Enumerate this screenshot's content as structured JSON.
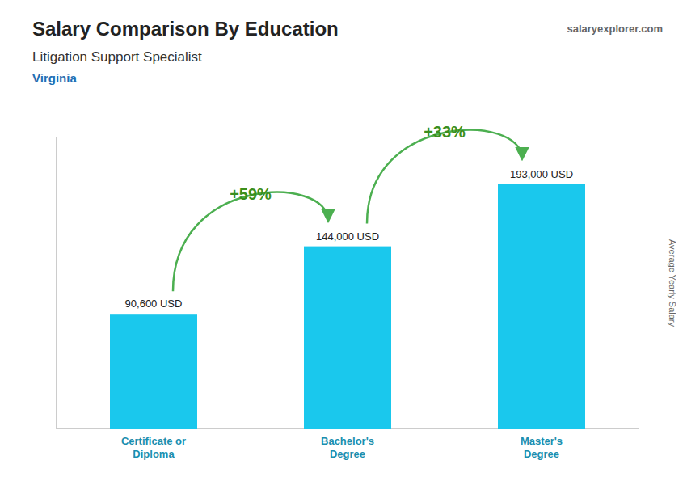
{
  "chart_data": {
    "type": "bar",
    "title": "Salary Comparison By Education",
    "subtitle": [
      "Litigation Support Specialist",
      "Virginia"
    ],
    "source": "salaryexplorer.com",
    "y_label": "Average Yearly Salary",
    "categories": [
      "Certificate or\nDiploma",
      "Bachelor's\nDegree",
      "Master's\nDegree"
    ],
    "values": [
      90600,
      144000,
      193000
    ],
    "value_labels": [
      "90,600 USD",
      "144,000 USD",
      "193,000 USD"
    ],
    "annotations": [
      "+59%",
      "+33%"
    ],
    "color": "#1ac8ed",
    "ylim": [
      0,
      230000
    ],
    "data_labels": true,
    "tick_labels": false,
    "grid": false
  }
}
